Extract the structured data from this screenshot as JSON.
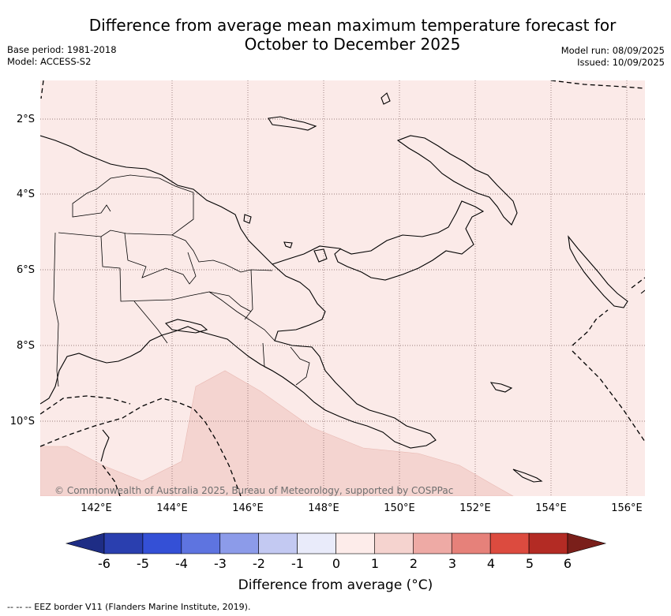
{
  "header": {
    "title_line1": "Difference from average mean maximum temperature forecast for",
    "title_line2": "October to December 2025",
    "base_period": "Base period: 1981-2018",
    "model": "Model: ACCESS-S2",
    "model_run": "Model run: 08/09/2025",
    "issued": "Issued: 10/09/2025"
  },
  "map": {
    "lat_labels": [
      "2°S",
      "4°S",
      "6°S",
      "8°S",
      "10°S"
    ],
    "lon_labels": [
      "142°E",
      "144°E",
      "146°E",
      "148°E",
      "150°E",
      "152°E",
      "154°E",
      "156°E"
    ],
    "background_color": "#fbeae8",
    "anomaly_color": "#f4d4d0",
    "copyright": "© Commonwealth of Australia 2025, Bureau of Meteorology, supported by COSPPac"
  },
  "colorbar": {
    "labels": [
      "-6",
      "-5",
      "-4",
      "-3",
      "-2",
      "-1",
      "0",
      "1",
      "2",
      "3",
      "4",
      "5",
      "6"
    ],
    "colors": [
      "#2a3faf",
      "#3450d6",
      "#5e74e0",
      "#8c9be9",
      "#c3c9f2",
      "#e9ebfa",
      "#fdecea",
      "#f5d3cf",
      "#eeaaa5",
      "#e6817a",
      "#dc4b3f",
      "#b32b24"
    ],
    "low_extend_color": "#1e2d85",
    "high_extend_color": "#7a1f1a",
    "title": "Difference from average (°C)"
  },
  "footer": {
    "eez_note": "-- -- -- EEZ border V11 (Flanders Marine Institute, 2019)."
  }
}
